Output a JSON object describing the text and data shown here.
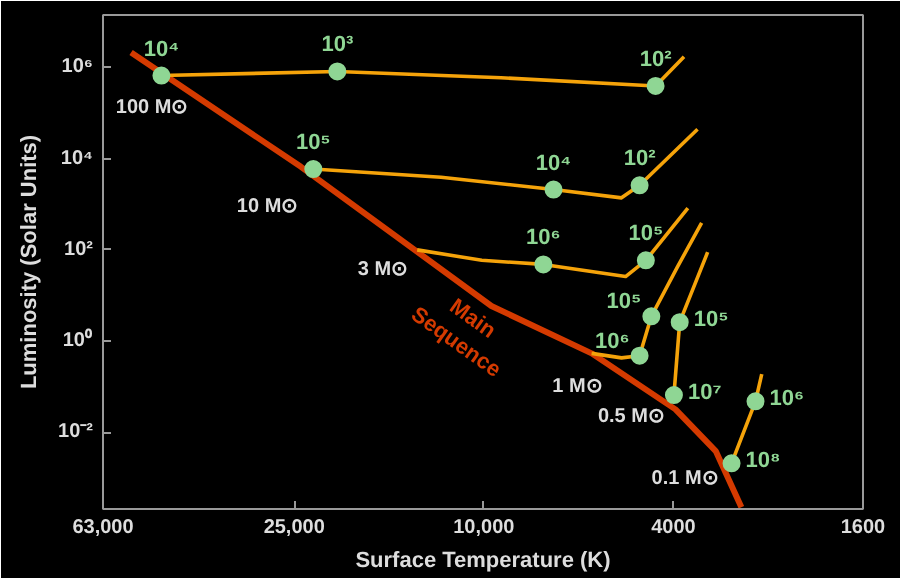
{
  "chart_data": {
    "type": "line",
    "xlabel": "Surface Temperature (K)",
    "ylabel": "Luminosity (Solar Units)",
    "log": "xy",
    "xlim": [
      63000,
      1600
    ],
    "ylim": [
      0.00021,
      14000000
    ],
    "xticks": [
      {
        "value": 63000,
        "label": "63,000"
      },
      {
        "value": 25000,
        "label": "25,000"
      },
      {
        "value": 10000,
        "label": "10,000"
      },
      4000,
      1600
    ],
    "yticks": [
      {
        "value": 1000000,
        "label": "10⁶"
      },
      {
        "value": 10000,
        "label": "10⁴"
      },
      {
        "value": 100,
        "label": "10²"
      },
      {
        "value": 1,
        "label": "10⁰"
      },
      {
        "value": 0.01,
        "label": "10⁻²"
      }
    ],
    "series": [
      {
        "name": "Main Sequence",
        "type": "line",
        "color": "#d43a00",
        "x": [
          55000,
          24200,
          9640,
          5940,
          3960,
          3260,
          2880
        ],
        "values": [
          2100000,
          6600,
          5.9,
          0.54,
          0.032,
          0.0039,
          0.00023
        ]
      },
      {
        "name": "100 M⊙",
        "type": "line",
        "color": "#f5a30a",
        "x": [
          3800,
          4360,
          9200,
          20300,
          47500
        ],
        "values": [
          1700000,
          390000,
          590000,
          810000,
          660000
        ]
      },
      {
        "name": "10 M⊙",
        "type": "line",
        "color": "#f5a30a",
        "x": [
          3560,
          4710,
          5140,
          7140,
          12300,
          22800
        ],
        "values": [
          44000,
          2600,
          1380,
          2100,
          3900,
          5900
        ]
      },
      {
        "name": "3 M⊙",
        "type": "line",
        "color": "#f5a30a",
        "x": [
          3730,
          4570,
          5040,
          7500,
          10100,
          13800
        ],
        "values": [
          820,
          59,
          26,
          48,
          59,
          100
        ]
      },
      {
        "name": "1 M⊙",
        "type": "line",
        "color": "#f5a30a",
        "x": [
          3490,
          3920,
          4450,
          4710,
          5140,
          5940
        ],
        "values": [
          390,
          43,
          3.5,
          0.48,
          0.43,
          0.54
        ]
      },
      {
        "name": "0.5 M⊙",
        "type": "line",
        "color": "#f5a30a",
        "x": [
          3390,
          3880,
          3990
        ],
        "values": [
          89,
          2.6,
          0.066
        ]
      },
      {
        "name": "0.1 M⊙",
        "type": "line",
        "color": "#f5a30a",
        "x": [
          2610,
          2690,
          3020
        ],
        "values": [
          0.19,
          0.048,
          0.0021
        ]
      },
      {
        "type": "scatter",
        "marker": "circle",
        "color": "#8fd694",
        "x": [
          47500,
          20300,
          4360,
          22800,
          7140,
          4710,
          7500,
          4570,
          4450,
          4710,
          3880,
          3990,
          2690,
          3020
        ],
        "values": [
          660000,
          810000,
          390000,
          5900,
          2100,
          2600,
          48,
          59,
          3.5,
          0.48,
          2.6,
          0.066,
          0.048,
          0.0021
        ]
      }
    ],
    "annotations": [
      {
        "text": "10⁴",
        "x": 47500,
        "y": 660000
      },
      {
        "text": "10³",
        "x": 20300,
        "y": 810000
      },
      {
        "text": "10²",
        "x": 4360,
        "y": 390000
      },
      {
        "text": "10⁵",
        "x": 22800,
        "y": 5900
      },
      {
        "text": "10⁴",
        "x": 7140,
        "y": 2100
      },
      {
        "text": "10²",
        "x": 4710,
        "y": 2600
      },
      {
        "text": "10⁶",
        "x": 7500,
        "y": 48
      },
      {
        "text": "10⁵",
        "x": 4570,
        "y": 59
      },
      {
        "text": "10⁵",
        "x": 4450,
        "y": 3.5
      },
      {
        "text": "10⁶",
        "x": 4710,
        "y": 0.48
      },
      {
        "text": "10⁵",
        "x": 3880,
        "y": 2.6
      },
      {
        "text": "10⁷",
        "x": 3990,
        "y": 0.066
      },
      {
        "text": "10⁶",
        "x": 2690,
        "y": 0.048
      },
      {
        "text": "10⁸",
        "x": 3020,
        "y": 0.0021
      }
    ]
  }
}
